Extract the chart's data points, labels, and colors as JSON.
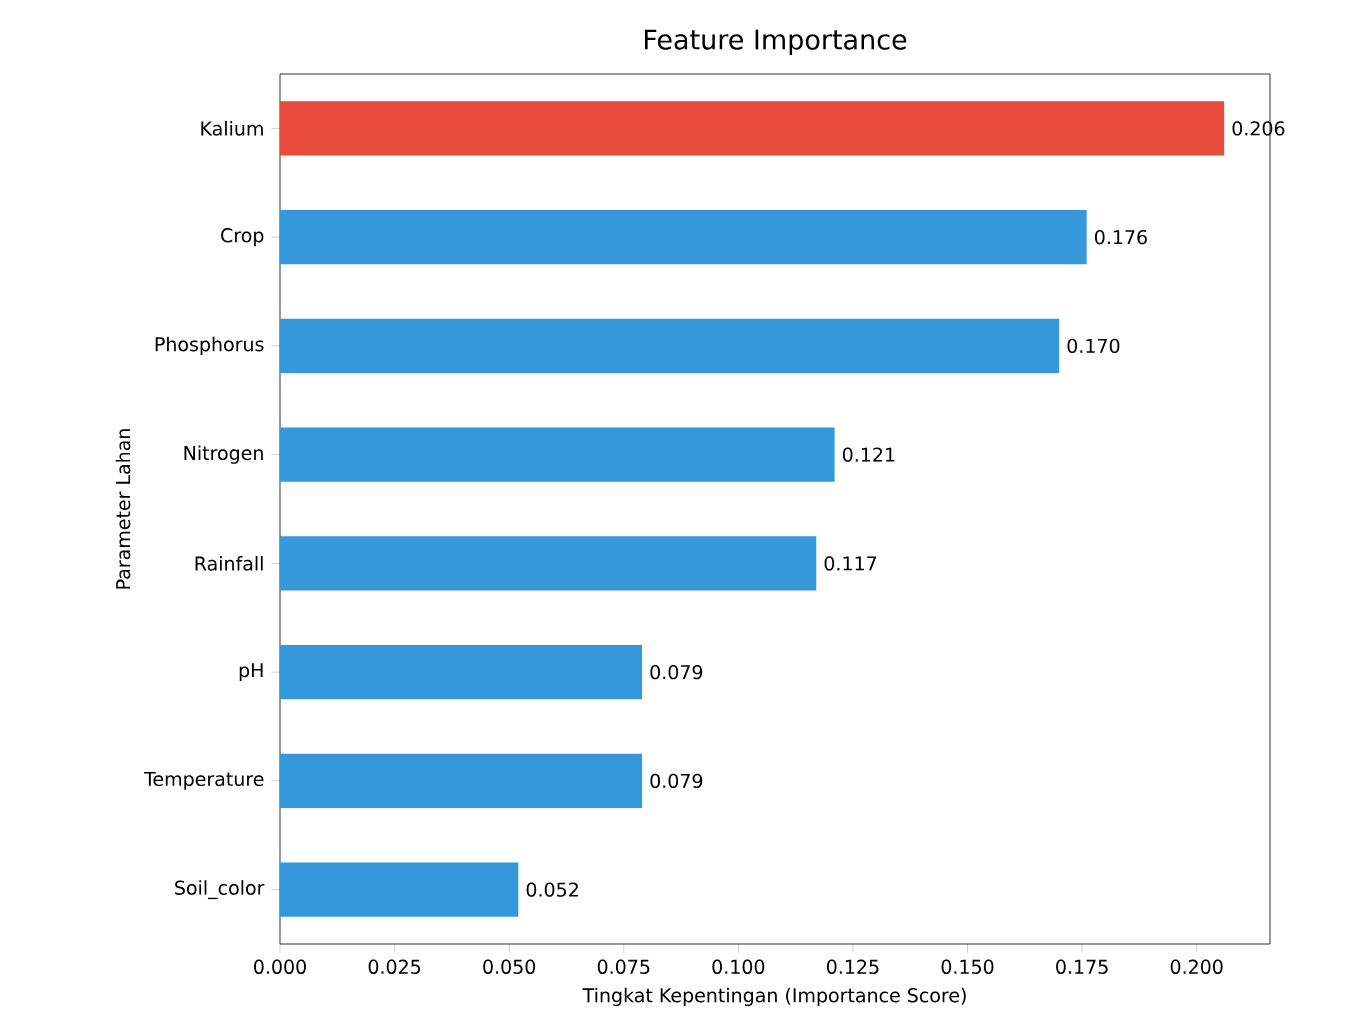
{
  "chart_data": {
    "type": "bar",
    "orientation": "horizontal",
    "title": "Feature Importance",
    "xlabel": "Tingkat Kepentingan (Importance Score)",
    "ylabel": "Parameter Lahan",
    "categories": [
      "Kalium",
      "Crop",
      "Phosphorus",
      "Nitrogen",
      "Rainfall",
      "pH",
      "Temperature",
      "Soil_color"
    ],
    "values": [
      0.206,
      0.176,
      0.17,
      0.121,
      0.117,
      0.079,
      0.079,
      0.052
    ],
    "value_labels": [
      "0.206",
      "0.176",
      "0.170",
      "0.121",
      "0.117",
      "0.079",
      "0.079",
      "0.052"
    ],
    "colors": [
      "#e74c3c",
      "#3498db",
      "#3498db",
      "#3498db",
      "#3498db",
      "#3498db",
      "#3498db",
      "#3498db"
    ],
    "xlim": [
      0,
      0.216
    ],
    "xticks": [
      {
        "value": 0,
        "label": "0.000"
      },
      {
        "value": 0.025,
        "label": "0.025"
      },
      {
        "value": 0.05,
        "label": "0.050"
      },
      {
        "value": 0.075,
        "label": "0.075"
      },
      {
        "value": 0.1,
        "label": "0.100"
      },
      {
        "value": 0.125,
        "label": "0.125"
      },
      {
        "value": 0.15,
        "label": "0.150"
      },
      {
        "value": 0.175,
        "label": "0.175"
      },
      {
        "value": 0.2,
        "label": "0.200"
      }
    ],
    "grid": false
  }
}
